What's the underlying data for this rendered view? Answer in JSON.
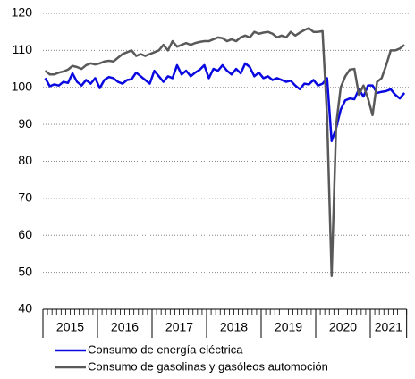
{
  "chart_data": {
    "type": "line",
    "categories": [
      "2015",
      null,
      null,
      null,
      null,
      null,
      null,
      null,
      null,
      null,
      null,
      null,
      "2016",
      null,
      null,
      null,
      null,
      null,
      null,
      null,
      null,
      null,
      null,
      null,
      "2017",
      null,
      null,
      null,
      null,
      null,
      null,
      null,
      null,
      null,
      null,
      null,
      "2018",
      null,
      null,
      null,
      null,
      null,
      null,
      null,
      null,
      null,
      null,
      null,
      "2019",
      null,
      null,
      null,
      null,
      null,
      null,
      null,
      null,
      null,
      null,
      null,
      "2020",
      null,
      null,
      null,
      null,
      null,
      null,
      null,
      null,
      null,
      null,
      null,
      "2021",
      null,
      null,
      null,
      null,
      null,
      null,
      null
    ],
    "series": [
      {
        "name": "Consumo de energía eléctrica",
        "color": "#0a0ae0",
        "values": [
          102.5,
          100.3,
          100.8,
          100.5,
          101.5,
          101.2,
          103.8,
          101.5,
          100.5,
          102,
          101,
          102.5,
          99.8,
          102,
          102.8,
          102.5,
          101.5,
          101,
          102,
          102.2,
          104,
          103,
          102,
          101,
          104.5,
          103,
          101.5,
          103,
          102.5,
          106,
          103.5,
          104.5,
          103,
          104,
          104.8,
          106,
          102.5,
          105,
          104.5,
          106,
          104.5,
          103.5,
          105,
          103.8,
          106.5,
          105.5,
          103,
          104,
          102.5,
          103,
          102,
          102.5,
          102,
          101.5,
          101.8,
          100.5,
          99.5,
          101,
          100.8,
          102,
          100.5,
          101,
          102.5,
          85.5,
          89,
          94,
          96.5,
          97,
          96.8,
          99.5,
          97.5,
          100.5,
          100.5,
          98.5,
          98.8,
          99,
          99.5,
          98,
          97,
          98.5
        ]
      },
      {
        "name": "Consumo de gasolinas y gasóleos automoción",
        "color": "#595959",
        "values": [
          104.5,
          103.5,
          103.5,
          104,
          104.3,
          104.8,
          105.8,
          105.5,
          105,
          106,
          106.5,
          106.2,
          106.5,
          107,
          107.2,
          107,
          108,
          109,
          109.5,
          110,
          108.5,
          109,
          108.5,
          109,
          109.5,
          110,
          111.5,
          110,
          112.5,
          111,
          111.5,
          112,
          111.5,
          112,
          112.3,
          112.5,
          112.5,
          113,
          113.5,
          113.3,
          112.5,
          113,
          112.5,
          113.5,
          114,
          113.5,
          115,
          114.5,
          114.8,
          115,
          114.5,
          113.5,
          114,
          113.5,
          115,
          114,
          114.8,
          115.5,
          116,
          115,
          115,
          115.2,
          92,
          49,
          90,
          100,
          103,
          104.8,
          105,
          98,
          100.5,
          97,
          92.5,
          101.5,
          102.5,
          106,
          110,
          110,
          110.5,
          111.5
        ]
      }
    ],
    "ylim": [
      40,
      120
    ],
    "yticks": [
      40,
      50,
      60,
      70,
      80,
      90,
      100,
      110,
      120
    ],
    "grid": true
  }
}
